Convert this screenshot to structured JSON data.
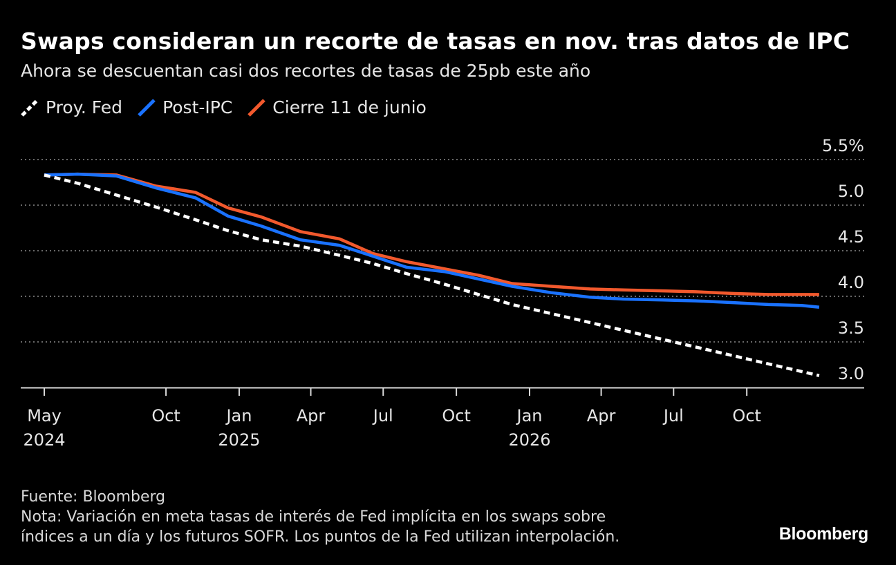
{
  "header": {
    "title": "Swaps consideran un recorte de tasas en nov. tras datos de IPC",
    "subtitle": "Ahora se descuentan casi dos recortes de tasas de 25pb este año"
  },
  "legend": [
    {
      "label": "Proy. Fed",
      "color": "#ffffff"
    },
    {
      "label": "Post-IPC",
      "color": "#1a72ff"
    },
    {
      "label": "Cierre 11 de junio",
      "color": "#f2592d"
    }
  ],
  "chart_data": {
    "type": "line",
    "x_axis": {
      "ticks": [
        {
          "date": "2024-05-01",
          "label": "May",
          "year": "2024"
        },
        {
          "date": "2024-10-01",
          "label": "Oct",
          "year": ""
        },
        {
          "date": "2025-01-01",
          "label": "Jan",
          "year": "2025"
        },
        {
          "date": "2025-04-01",
          "label": "Apr",
          "year": ""
        },
        {
          "date": "2025-07-01",
          "label": "Jul",
          "year": ""
        },
        {
          "date": "2025-10-01",
          "label": "Oct",
          "year": ""
        },
        {
          "date": "2026-01-01",
          "label": "Jan",
          "year": "2026"
        },
        {
          "date": "2026-04-01",
          "label": "Apr",
          "year": ""
        },
        {
          "date": "2026-07-01",
          "label": "Jul",
          "year": ""
        },
        {
          "date": "2026-10-01",
          "label": "Oct",
          "year": ""
        }
      ]
    },
    "y_axis": {
      "ticks": [
        {
          "value": 5.5,
          "label": "5.5%"
        },
        {
          "value": 5.0,
          "label": "5.0"
        },
        {
          "value": 4.5,
          "label": "4.5"
        },
        {
          "value": 4.0,
          "label": "4.0"
        },
        {
          "value": 3.5,
          "label": "3.5"
        },
        {
          "value": 3.0,
          "label": "3.0"
        }
      ],
      "range": [
        3.0,
        5.5
      ],
      "position": "right",
      "grid": "dotted"
    },
    "series": [
      {
        "name": "Proy. Fed",
        "color": "#ffffff",
        "style": "dashed",
        "x": [
          "2024-05-01",
          "2024-06-12",
          "2024-07-31",
          "2024-09-18",
          "2024-11-07",
          "2024-12-18",
          "2025-01-29",
          "2025-03-19",
          "2025-05-07",
          "2025-06-18",
          "2025-07-30",
          "2025-09-17",
          "2025-10-29",
          "2025-12-10",
          "2026-12-31"
        ],
        "values": [
          5.33,
          5.24,
          5.11,
          4.98,
          4.84,
          4.72,
          4.62,
          4.55,
          4.45,
          4.36,
          4.25,
          4.13,
          4.02,
          3.91,
          3.13
        ]
      },
      {
        "name": "Post-IPC",
        "color": "#1a72ff",
        "style": "solid",
        "x": [
          "2024-05-01",
          "2024-06-12",
          "2024-07-31",
          "2024-09-18",
          "2024-11-07",
          "2024-12-18",
          "2025-01-29",
          "2025-03-19",
          "2025-05-07",
          "2025-06-18",
          "2025-07-30",
          "2025-09-17",
          "2025-10-29",
          "2025-12-10",
          "2026-01-28",
          "2026-03-18",
          "2026-04-29",
          "2026-06-17",
          "2026-07-29",
          "2026-09-16",
          "2026-10-28",
          "2026-12-09",
          "2026-12-31"
        ],
        "values": [
          5.33,
          5.34,
          5.32,
          5.19,
          5.08,
          4.88,
          4.77,
          4.62,
          4.56,
          4.44,
          4.32,
          4.27,
          4.19,
          4.11,
          4.04,
          3.99,
          3.97,
          3.96,
          3.95,
          3.93,
          3.91,
          3.9,
          3.88
        ]
      },
      {
        "name": "Cierre 11 de junio",
        "color": "#f2592d",
        "style": "solid",
        "x": [
          "2024-05-01",
          "2024-06-12",
          "2024-07-31",
          "2024-09-18",
          "2024-11-07",
          "2024-12-18",
          "2025-01-29",
          "2025-03-19",
          "2025-05-07",
          "2025-06-18",
          "2025-07-30",
          "2025-09-17",
          "2025-10-29",
          "2025-12-10",
          "2026-01-28",
          "2026-03-18",
          "2026-04-29",
          "2026-06-17",
          "2026-07-29",
          "2026-09-16",
          "2026-10-28",
          "2026-12-09",
          "2026-12-31"
        ],
        "values": [
          5.33,
          5.34,
          5.33,
          5.21,
          5.14,
          4.97,
          4.87,
          4.71,
          4.63,
          4.47,
          4.38,
          4.3,
          4.23,
          4.14,
          4.11,
          4.08,
          4.07,
          4.06,
          4.05,
          4.03,
          4.02,
          4.02,
          4.02
        ]
      }
    ]
  },
  "footer": {
    "source": "Fuente: Bloomberg",
    "note_line1": "Nota: Variación en meta tasas de interés de Fed implícita en los swaps sobre",
    "note_line2": "índices a un día y los futuros SOFR. Los puntos de la Fed utilizan interpolación.",
    "brand": "Bloomberg"
  }
}
